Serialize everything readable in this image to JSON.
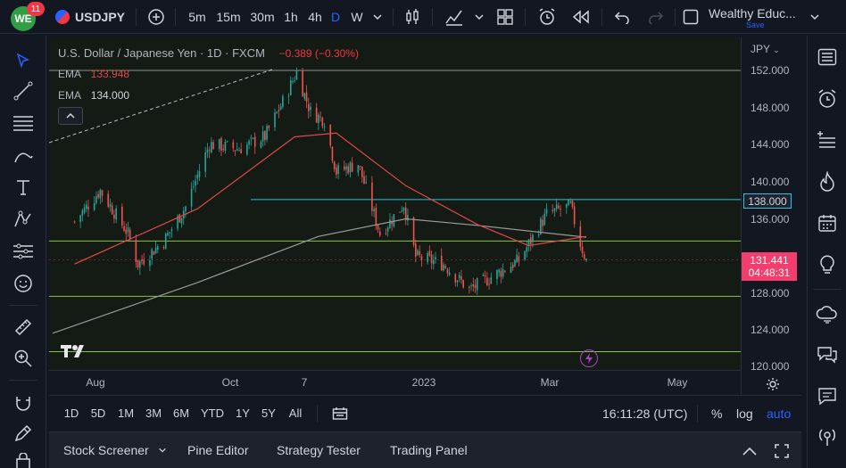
{
  "header": {
    "avatar_text": "WE",
    "notification_count": "11",
    "symbol": "USDJPY",
    "intervals": [
      "5m",
      "15m",
      "30m",
      "1h",
      "4h",
      "D",
      "W"
    ],
    "active_interval": "D",
    "layout_name": "Wealthy Educ...",
    "save_label": "Save"
  },
  "legend": {
    "instrument": "U.S. Dollar / Japanese Yen · 1D · FXCM",
    "change": "−0.389 (−0.30%)",
    "ema1_label": "EMA",
    "ema1_value": "133.948",
    "ema2_label": "EMA",
    "ema2_value": "134.000"
  },
  "price_axis": {
    "currency": "JPY",
    "ticks": [
      "152.000",
      "148.000",
      "144.000",
      "140.000",
      "136.000",
      "128.000",
      "124.000",
      "120.000"
    ],
    "level_label": "138.000",
    "last_price": "131.441",
    "countdown": "04:48:31"
  },
  "time_axis": {
    "labels": [
      "Aug",
      "Oct",
      "7",
      "2023",
      "Mar",
      "May"
    ]
  },
  "bottom_toolbar": {
    "ranges": [
      "1D",
      "5D",
      "1M",
      "3M",
      "6M",
      "YTD",
      "1Y",
      "5Y",
      "All"
    ],
    "clock": "16:11:28 (UTC)",
    "percent": "%",
    "log": "log",
    "auto": "auto"
  },
  "panel_tabs": [
    "Stock Screener",
    "Pine Editor",
    "Strategy Tester",
    "Trading Panel"
  ],
  "colors": {
    "up": "#26a69a",
    "down": "#ef5350",
    "accent": "#2962ff",
    "ema_fast": "#e04848",
    "ema_slow": "#9a9a9a",
    "hline_cyan": "#26c6da",
    "hline_green": "#8bc34a",
    "last_price_bg": "#f23d6d"
  },
  "chart_data": {
    "type": "candlestick",
    "symbol": "USDJPY",
    "timeframe": "1D",
    "ylim": [
      119,
      153
    ],
    "close_path": [
      {
        "x": "2022-07-01",
        "y": 135.6
      },
      {
        "x": "2022-07-14",
        "y": 139.0
      },
      {
        "x": "2022-07-28",
        "y": 134.3
      },
      {
        "x": "2022-08-02",
        "y": 131.0
      },
      {
        "x": "2022-08-15",
        "y": 133.5
      },
      {
        "x": "2022-08-26",
        "y": 137.2
      },
      {
        "x": "2022-09-07",
        "y": 144.0
      },
      {
        "x": "2022-09-22",
        "y": 143.5
      },
      {
        "x": "2022-10-05",
        "y": 144.8
      },
      {
        "x": "2022-10-14",
        "y": 148.6
      },
      {
        "x": "2022-10-21",
        "y": 151.8
      },
      {
        "x": "2022-10-28",
        "y": 147.5
      },
      {
        "x": "2022-11-04",
        "y": 146.6
      },
      {
        "x": "2022-11-10",
        "y": 141.0
      },
      {
        "x": "2022-11-21",
        "y": 141.9
      },
      {
        "x": "2022-12-02",
        "y": 134.3
      },
      {
        "x": "2022-12-14",
        "y": 137.5
      },
      {
        "x": "2022-12-20",
        "y": 131.8
      },
      {
        "x": "2023-01-03",
        "y": 131.0
      },
      {
        "x": "2023-01-16",
        "y": 128.2
      },
      {
        "x": "2023-01-31",
        "y": 130.1
      },
      {
        "x": "2023-02-10",
        "y": 131.4
      },
      {
        "x": "2023-02-24",
        "y": 136.4
      },
      {
        "x": "2023-03-08",
        "y": 137.3
      },
      {
        "x": "2023-03-13",
        "y": 133.2
      },
      {
        "x": "2023-03-16",
        "y": 131.4
      }
    ],
    "ema_fast": [
      {
        "x": "2022-07-01",
        "y": 131.0
      },
      {
        "x": "2022-09-01",
        "y": 137.0
      },
      {
        "x": "2022-10-20",
        "y": 144.8
      },
      {
        "x": "2022-11-10",
        "y": 145.2
      },
      {
        "x": "2022-12-15",
        "y": 139.5
      },
      {
        "x": "2023-01-20",
        "y": 135.3
      },
      {
        "x": "2023-02-15",
        "y": 133.0
      },
      {
        "x": "2023-03-16",
        "y": 134.0
      }
    ],
    "ema_slow": [
      {
        "x": "2022-06-20",
        "y": 123.5
      },
      {
        "x": "2022-09-01",
        "y": 129.0
      },
      {
        "x": "2022-11-01",
        "y": 134.0
      },
      {
        "x": "2022-12-15",
        "y": 135.9
      },
      {
        "x": "2023-01-20",
        "y": 135.2
      },
      {
        "x": "2023-03-16",
        "y": 133.9
      }
    ],
    "horizontal_lines": [
      {
        "y": 152.0,
        "color": "#ffffff"
      },
      {
        "y": 138.0,
        "color": "#26c6da"
      },
      {
        "y": 133.5,
        "color": "#8bc34a"
      },
      {
        "y": 127.5,
        "color": "#8bc34a"
      },
      {
        "y": 121.5,
        "color": "#8bc34a"
      }
    ],
    "last_price": 131.441
  }
}
